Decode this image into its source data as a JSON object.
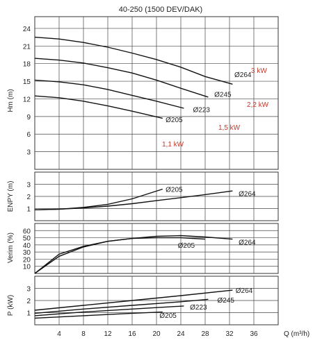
{
  "title": "40-250 (1500 DEV/DAK)",
  "x_axis": {
    "label": "Q (m³/h)",
    "range": [
      0,
      40
    ],
    "ticks": [
      4,
      8,
      12,
      16,
      20,
      24,
      28,
      32,
      36
    ]
  },
  "chart_data": [
    {
      "type": "line",
      "panel": "head",
      "ylabel": "Hm (m)",
      "ylim": [
        0,
        26
      ],
      "ticks": [
        3,
        6,
        9,
        12,
        15,
        18,
        21,
        24
      ],
      "grid": true,
      "series": [
        {
          "name": "Ø264",
          "x": [
            0,
            4,
            8,
            12,
            16,
            20,
            24,
            28,
            32.5
          ],
          "y": [
            22.5,
            22.2,
            21.6,
            20.8,
            19.8,
            18.7,
            17.4,
            15.8,
            14.5
          ]
        },
        {
          "name": "Ø245",
          "x": [
            0,
            4,
            8,
            12,
            16,
            20,
            24,
            28.5
          ],
          "y": [
            18.9,
            18.6,
            18.1,
            17.3,
            16.4,
            15.2,
            13.8,
            12.3
          ]
        },
        {
          "name": "Ø223",
          "x": [
            0,
            4,
            8,
            12,
            16,
            20,
            24.5
          ],
          "y": [
            15.2,
            14.9,
            14.4,
            13.6,
            12.6,
            11.6,
            10.4
          ]
        },
        {
          "name": "Ø205",
          "x": [
            0,
            4,
            8,
            12,
            16,
            21
          ],
          "y": [
            12.5,
            12.2,
            11.6,
            10.8,
            9.9,
            8.7
          ]
        }
      ],
      "power_labels": [
        "3 kW",
        "2,2 kW",
        "1,5 kW",
        "1,1 kW"
      ]
    },
    {
      "type": "line",
      "panel": "npsh",
      "ylabel": "ENPY (m)",
      "ylim": [
        0,
        4
      ],
      "ticks": [
        1,
        2,
        3
      ],
      "grid": true,
      "series": [
        {
          "name": "Ø205",
          "x": [
            0,
            4,
            8,
            12,
            16,
            21
          ],
          "y": [
            0.9,
            0.95,
            1.1,
            1.35,
            1.8,
            2.6
          ]
        },
        {
          "name": "Ø264",
          "x": [
            0,
            4,
            8,
            12,
            16,
            20,
            24,
            28,
            32.5
          ],
          "y": [
            0.9,
            0.95,
            1.05,
            1.2,
            1.4,
            1.65,
            1.9,
            2.15,
            2.45
          ]
        }
      ]
    },
    {
      "type": "line",
      "panel": "efficiency",
      "ylabel": "Verim (%)",
      "ylim": [
        0,
        70
      ],
      "ticks": [
        10,
        20,
        30,
        40,
        50,
        60
      ],
      "grid": true,
      "series": [
        {
          "name": "Ø205",
          "x": [
            0,
            4,
            8,
            12,
            16,
            20,
            24,
            28
          ],
          "y": [
            0,
            27,
            38,
            45,
            49,
            50,
            50,
            48
          ]
        },
        {
          "name": "Ø264",
          "x": [
            0,
            4,
            8,
            12,
            16,
            20,
            24,
            28,
            32.5
          ],
          "y": [
            0,
            24,
            37,
            45,
            49,
            52,
            53,
            51,
            48
          ]
        }
      ]
    },
    {
      "type": "line",
      "panel": "power",
      "ylabel": "P (kW)",
      "ylim": [
        0,
        4
      ],
      "ticks": [
        1,
        2,
        3
      ],
      "grid": true,
      "series": [
        {
          "name": "Ø264",
          "x": [
            0,
            8,
            16,
            24,
            32.5
          ],
          "y": [
            1.2,
            1.6,
            2.0,
            2.4,
            2.85
          ]
        },
        {
          "name": "Ø245",
          "x": [
            0,
            8,
            16,
            24,
            28.5
          ],
          "y": [
            0.95,
            1.3,
            1.6,
            1.9,
            2.1
          ]
        },
        {
          "name": "Ø223",
          "x": [
            0,
            8,
            16,
            24.5
          ],
          "y": [
            0.75,
            1.05,
            1.3,
            1.55
          ]
        },
        {
          "name": "Ø205",
          "x": [
            0,
            8,
            16,
            21
          ],
          "y": [
            0.55,
            0.75,
            0.95,
            1.05
          ]
        }
      ]
    }
  ]
}
